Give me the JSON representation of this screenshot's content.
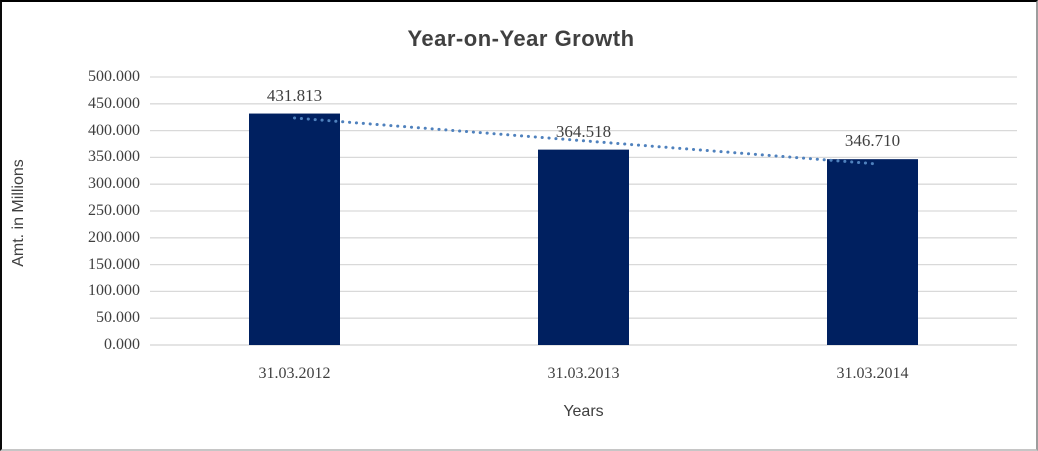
{
  "chart_data": {
    "type": "bar",
    "title": "Year-on-Year Growth",
    "xlabel": "Years",
    "ylabel": "Amt. in Millions",
    "categories": [
      "31.03.2012",
      "31.03.2013",
      "31.03.2014"
    ],
    "values": [
      431.813,
      364.518,
      346.71
    ],
    "value_labels": [
      "431.813",
      "364.518",
      "346.710"
    ],
    "ylim": [
      0,
      500
    ],
    "ytick_step": 50,
    "y_tick_labels": [
      "500.000",
      "450.000",
      "400.000",
      "350.000",
      "300.000",
      "250.000",
      "200.000",
      "150.000",
      "100.000",
      "50.000",
      "0.000"
    ],
    "grid": true,
    "legend_position": "none",
    "trendline": {
      "fit": "linear",
      "style": "dotted"
    },
    "colors": {
      "bar": "#002060",
      "trendline": "#4f81bd",
      "gridline": "#d9d9d9",
      "axis_line": "#d4d4d4",
      "text": "#3f3f3f",
      "title": "#404040",
      "background": "#ffffff"
    }
  }
}
